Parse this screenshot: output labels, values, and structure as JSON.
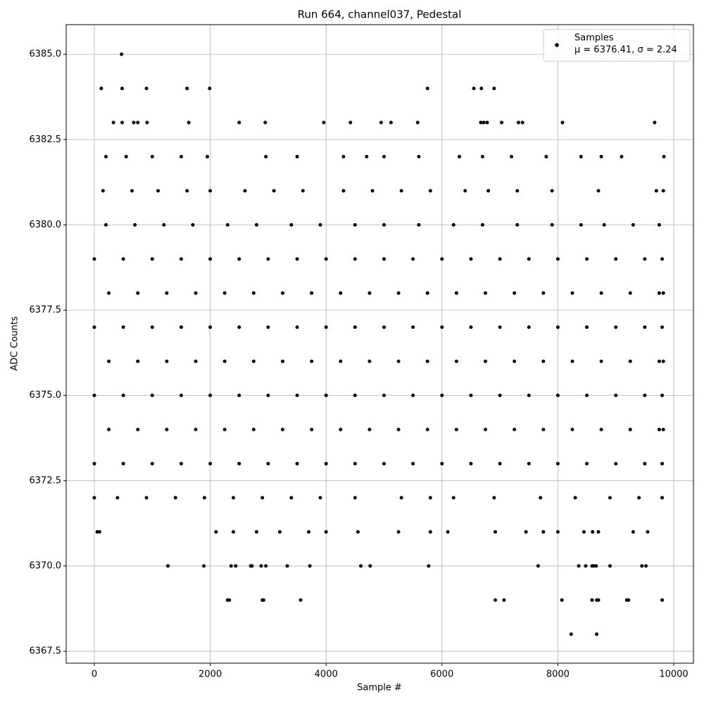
{
  "chart_data": {
    "type": "scatter",
    "title": "Run 664, channel037, Pedestal",
    "x_label": "Sample #",
    "y_label": "ADC Counts",
    "legend_stats": "μ = 6376.41, σ = 2.24",
    "legend_position": "upper right",
    "grid": true,
    "xlim": [
      -486,
      10340
    ],
    "ylim": [
      6367.15,
      6385.87
    ],
    "xticks": [
      0,
      2000,
      4000,
      6000,
      8000,
      10000
    ],
    "yticks": [
      {
        "value": 6367.5,
        "label": "6367.5"
      },
      {
        "value": 6370,
        "label": "6370.0"
      },
      {
        "value": 6372.5,
        "label": "6372.5"
      },
      {
        "value": 6375,
        "label": "6375.0"
      },
      {
        "value": 6377.5,
        "label": "6377.5"
      },
      {
        "value": 6380,
        "label": "6380.0"
      },
      {
        "value": 6382.5,
        "label": "6382.5"
      },
      {
        "value": 6385,
        "label": "6385.0"
      }
    ],
    "series": [
      {
        "name": "Samples",
        "color": "#000000",
        "x": [
          470,
          120,
          480,
          900,
          1600,
          1990,
          5750,
          6550,
          6680,
          6900,
          330,
          480,
          680,
          750,
          910,
          1630,
          2500,
          2950,
          3960,
          4420,
          4950,
          5120,
          5580,
          6670,
          6720,
          6780,
          7030,
          7320,
          7390,
          8080,
          9670,
          1270,
          1890,
          2360,
          2440,
          2700,
          2720,
          2880,
          2960,
          3330,
          3720,
          4600,
          4760,
          5770,
          7660,
          8360,
          8480,
          8590,
          8620,
          8660,
          8900,
          9450,
          9520,
          2300,
          2330,
          2900,
          2920,
          3560,
          6920,
          7070,
          8070,
          8590,
          8670,
          8700,
          9190,
          9220,
          9800,
          8230,
          8670,
          50,
          90,
          2100,
          2400,
          2800,
          3200,
          3700,
          4000,
          4550,
          5250,
          5800,
          6100,
          6920,
          7450,
          7750,
          8000,
          8450,
          8600,
          8700,
          9300,
          9550,
          0,
          400,
          900,
          1400,
          1900,
          2400,
          2900,
          3400,
          3900,
          4500,
          5300,
          5800,
          6200,
          6900,
          7700,
          8300,
          8900,
          9400,
          9800,
          200,
          700,
          1200,
          1700,
          2300,
          2800,
          3400,
          3900,
          4500,
          5000,
          5600,
          6200,
          6700,
          7300,
          7900,
          8400,
          8800,
          9300,
          9750,
          150,
          650,
          1100,
          1600,
          2000,
          2600,
          3100,
          3600,
          4300,
          4800,
          5300,
          5800,
          6400,
          6800,
          7300,
          7900,
          8700,
          9700,
          9820,
          200,
          550,
          1000,
          1500,
          1950,
          2960,
          3500,
          4300,
          4700,
          5000,
          5600,
          6300,
          6700,
          7200,
          7800,
          8400,
          8750,
          9100,
          9830,
          0,
          500,
          1000,
          1500,
          2000,
          2500,
          3000,
          3500,
          4000,
          4500,
          5000,
          5500,
          6000,
          6500,
          7000,
          7500,
          8000,
          8500,
          9000,
          9500,
          9800,
          250,
          750,
          1250,
          1750,
          2250,
          2750,
          3250,
          3750,
          4250,
          4750,
          5250,
          5750,
          6250,
          6750,
          7250,
          7750,
          8250,
          8750,
          9250,
          9750,
          9820,
          0,
          500,
          1000,
          1500,
          2000,
          2500,
          3000,
          3500,
          4000,
          4500,
          5000,
          5500,
          6000,
          6500,
          7000,
          7500,
          8000,
          8500,
          9000,
          9500,
          9800,
          250,
          750,
          1250,
          1750,
          2250,
          2750,
          3250,
          3750,
          4250,
          4750,
          5250,
          5750,
          6250,
          6750,
          7250,
          7750,
          8250,
          8750,
          9250,
          9750,
          9820,
          0,
          500,
          1000,
          1500,
          2000,
          2500,
          3000,
          3500,
          4000,
          4500,
          5000,
          5500,
          6000,
          6500,
          7000,
          7500,
          8000,
          8500,
          9000,
          9500,
          9800,
          250,
          750,
          1250,
          1750,
          2250,
          2750,
          3250,
          3750,
          4250,
          4750,
          5250,
          5750,
          6250,
          6750,
          7250,
          7750,
          8250,
          8750,
          9250,
          9750,
          9820,
          0,
          500,
          1000,
          1500,
          2000,
          2500,
          3000,
          3500,
          4000,
          4500,
          5000,
          5500,
          6000,
          6500,
          7000,
          7500,
          8000,
          8500,
          9000,
          9500,
          9800
        ],
        "values": [
          6385,
          6384,
          6384,
          6384,
          6384,
          6384,
          6384,
          6384,
          6384,
          6384,
          6383,
          6383,
          6383,
          6383,
          6383,
          6383,
          6383,
          6383,
          6383,
          6383,
          6383,
          6383,
          6383,
          6383,
          6383,
          6383,
          6383,
          6383,
          6383,
          6383,
          6383,
          6370,
          6370,
          6370,
          6370,
          6370,
          6370,
          6370,
          6370,
          6370,
          6370,
          6370,
          6370,
          6370,
          6370,
          6370,
          6370,
          6370,
          6370,
          6370,
          6370,
          6370,
          6370,
          6369,
          6369,
          6369,
          6369,
          6369,
          6369,
          6369,
          6369,
          6369,
          6369,
          6369,
          6369,
          6369,
          6369,
          6368,
          6368,
          6371,
          6371,
          6371,
          6371,
          6371,
          6371,
          6371,
          6371,
          6371,
          6371,
          6371,
          6371,
          6371,
          6371,
          6371,
          6371,
          6371,
          6371,
          6371,
          6371,
          6371,
          6372,
          6372,
          6372,
          6372,
          6372,
          6372,
          6372,
          6372,
          6372,
          6372,
          6372,
          6372,
          6372,
          6372,
          6372,
          6372,
          6372,
          6372,
          6372,
          6380,
          6380,
          6380,
          6380,
          6380,
          6380,
          6380,
          6380,
          6380,
          6380,
          6380,
          6380,
          6380,
          6380,
          6380,
          6380,
          6380,
          6380,
          6380,
          6381,
          6381,
          6381,
          6381,
          6381,
          6381,
          6381,
          6381,
          6381,
          6381,
          6381,
          6381,
          6381,
          6381,
          6381,
          6381,
          6381,
          6381,
          6381,
          6382,
          6382,
          6382,
          6382,
          6382,
          6382,
          6382,
          6382,
          6382,
          6382,
          6382,
          6382,
          6382,
          6382,
          6382,
          6382,
          6382,
          6382,
          6382,
          6373,
          6373,
          6373,
          6373,
          6373,
          6373,
          6373,
          6373,
          6373,
          6373,
          6373,
          6373,
          6373,
          6373,
          6373,
          6373,
          6373,
          6373,
          6373,
          6373,
          6373,
          6374,
          6374,
          6374,
          6374,
          6374,
          6374,
          6374,
          6374,
          6374,
          6374,
          6374,
          6374,
          6374,
          6374,
          6374,
          6374,
          6374,
          6374,
          6374,
          6374,
          6374,
          6375,
          6375,
          6375,
          6375,
          6375,
          6375,
          6375,
          6375,
          6375,
          6375,
          6375,
          6375,
          6375,
          6375,
          6375,
          6375,
          6375,
          6375,
          6375,
          6375,
          6375,
          6376,
          6376,
          6376,
          6376,
          6376,
          6376,
          6376,
          6376,
          6376,
          6376,
          6376,
          6376,
          6376,
          6376,
          6376,
          6376,
          6376,
          6376,
          6376,
          6376,
          6376,
          6377,
          6377,
          6377,
          6377,
          6377,
          6377,
          6377,
          6377,
          6377,
          6377,
          6377,
          6377,
          6377,
          6377,
          6377,
          6377,
          6377,
          6377,
          6377,
          6377,
          6377,
          6378,
          6378,
          6378,
          6378,
          6378,
          6378,
          6378,
          6378,
          6378,
          6378,
          6378,
          6378,
          6378,
          6378,
          6378,
          6378,
          6378,
          6378,
          6378,
          6378,
          6378,
          6379,
          6379,
          6379,
          6379,
          6379,
          6379,
          6379,
          6379,
          6379,
          6379,
          6379,
          6379,
          6379,
          6379,
          6379,
          6379,
          6379,
          6379,
          6379,
          6379,
          6379
        ]
      }
    ]
  }
}
